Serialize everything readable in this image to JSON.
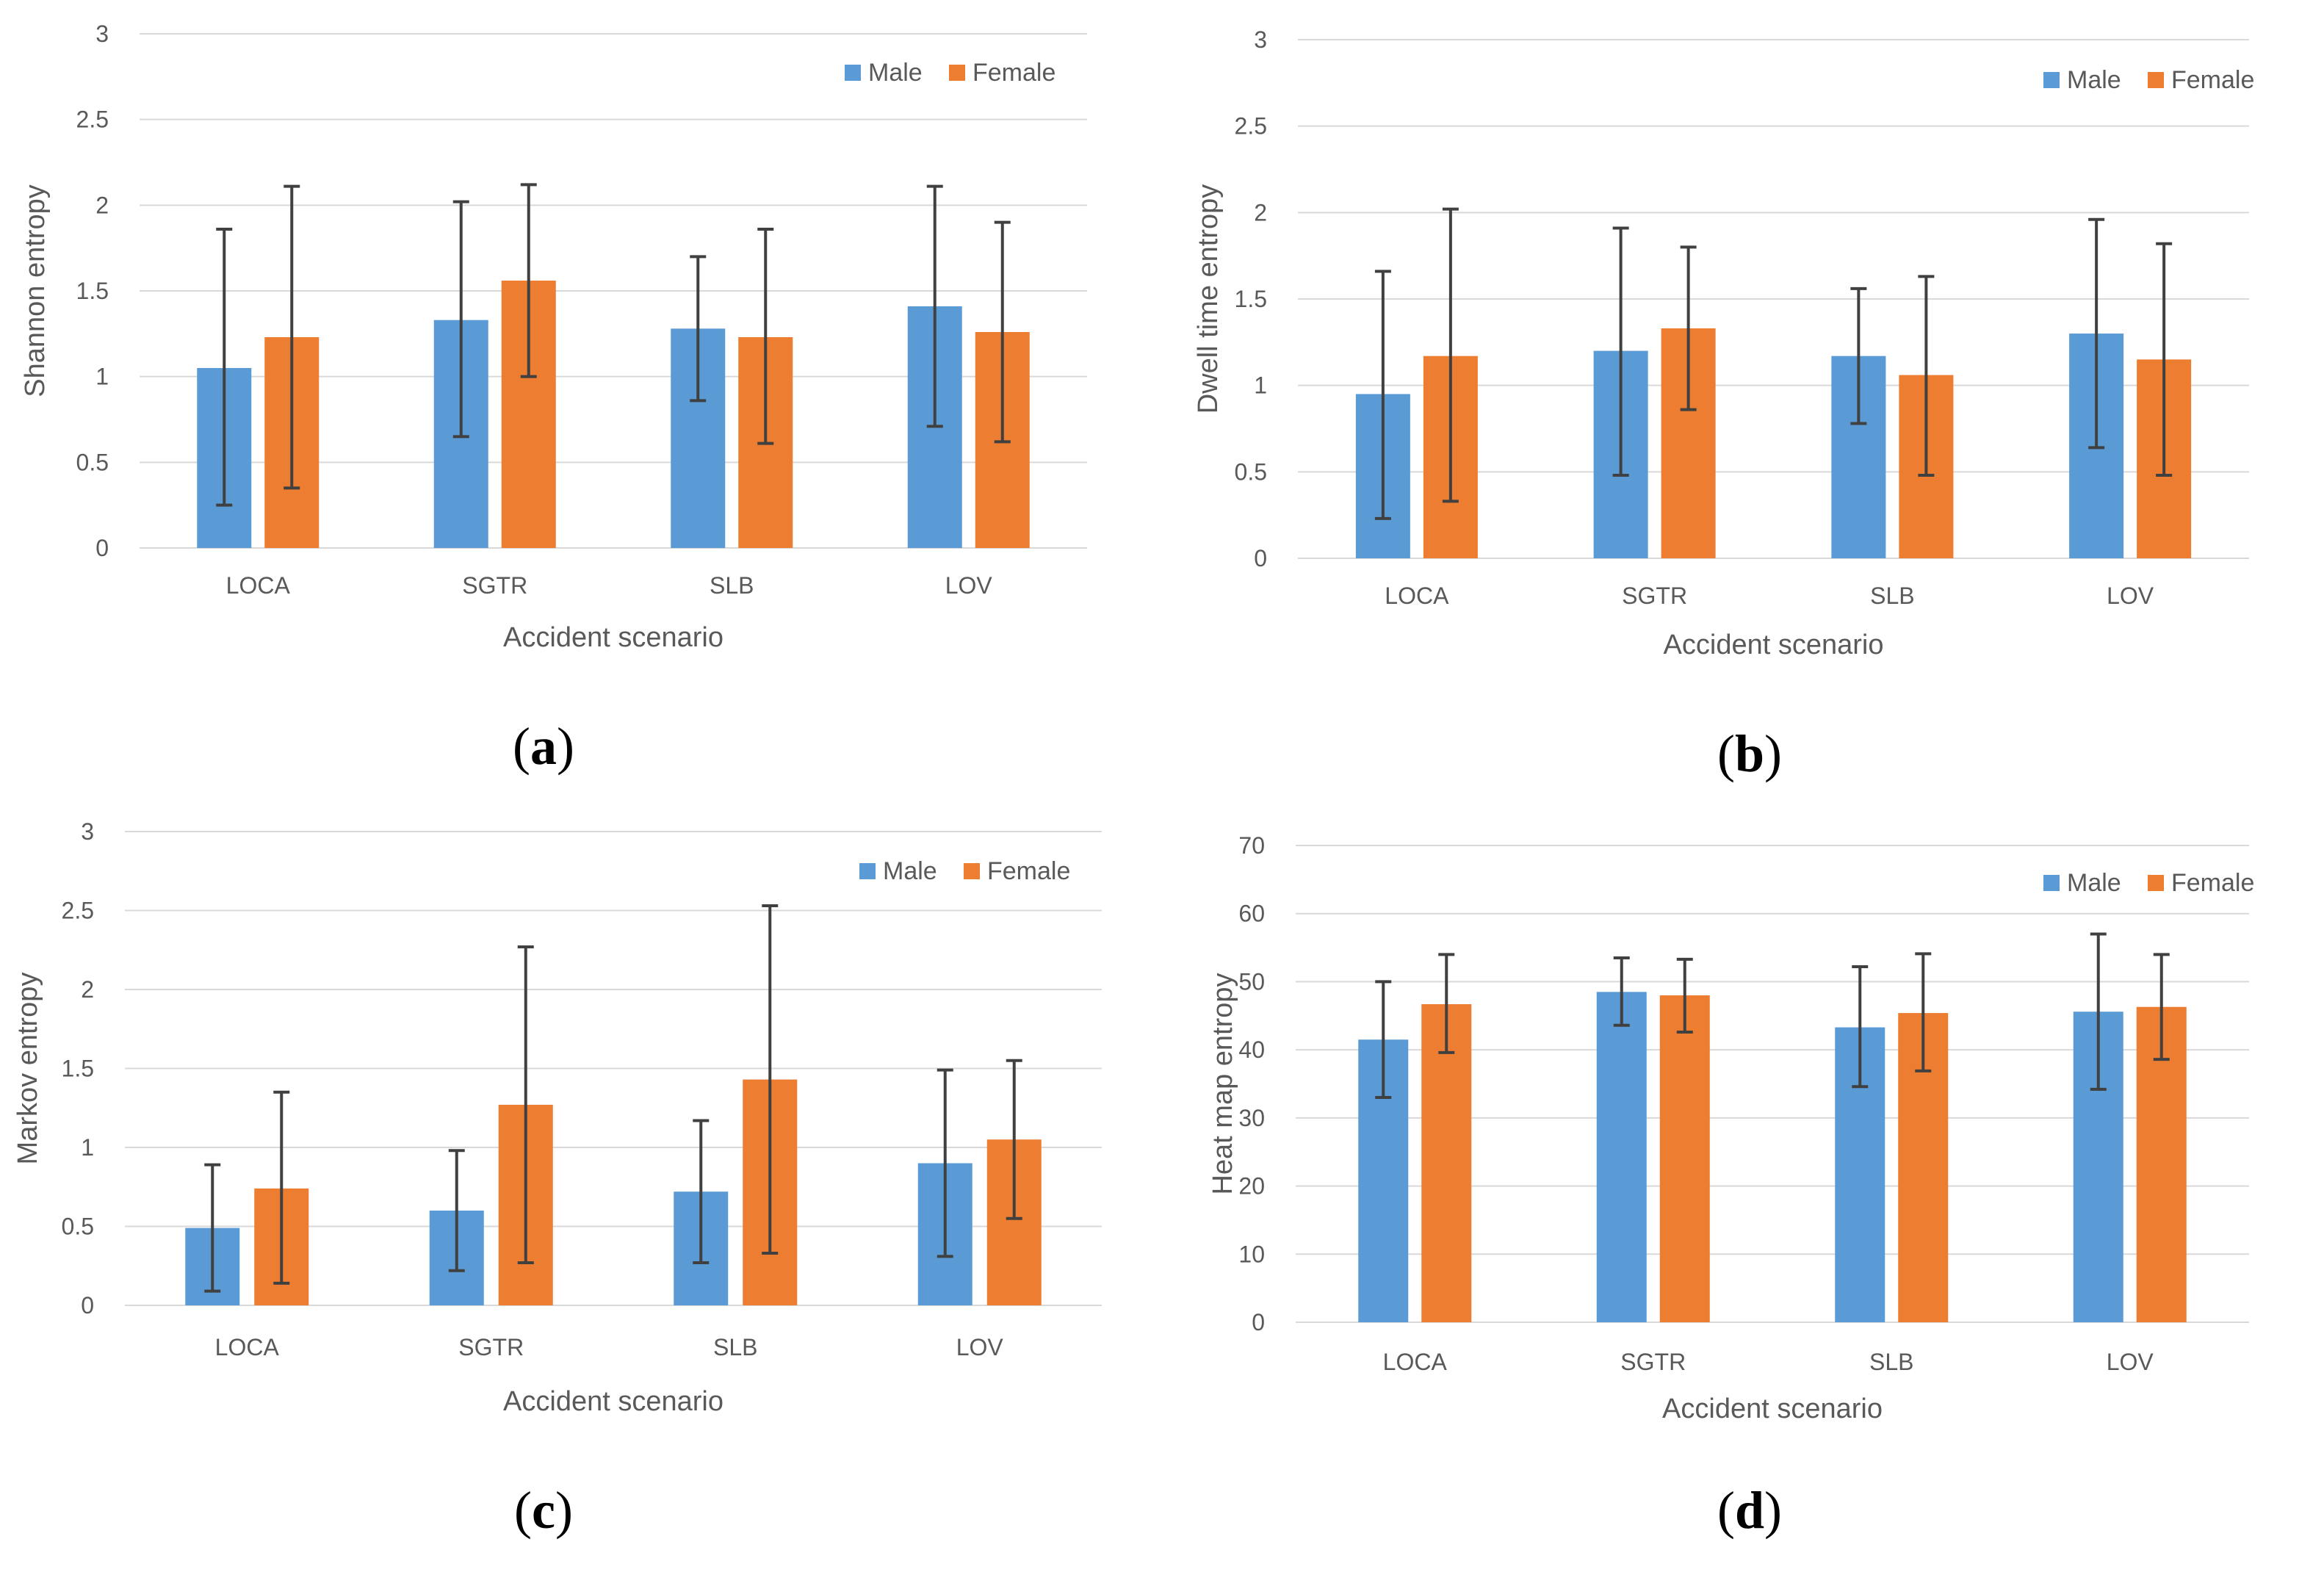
{
  "colors": {
    "male": "#5B9BD5",
    "female": "#ED7D31",
    "grid": "#D9D9D9",
    "error_bar": "#404040",
    "text": "#595959"
  },
  "chart_data": [
    {
      "type": "bar",
      "panel_label": "a",
      "title": "",
      "xlabel": "Accident scenario",
      "ylabel": "Shannon entropy",
      "categories": [
        "LOCA",
        "SGTR",
        "SLB",
        "LOV"
      ],
      "ylim": [
        0,
        3
      ],
      "yticks": [
        "0",
        "0.5",
        "1",
        "1.5",
        "2",
        "2.5",
        "3"
      ],
      "legend_position": "top-right",
      "series": [
        {
          "name": "Male",
          "values": [
            1.05,
            1.33,
            1.28,
            1.41
          ],
          "error_upper": [
            1.86,
            2.02,
            1.7,
            2.11
          ],
          "error_lower": [
            0.25,
            0.65,
            0.86,
            0.71
          ]
        },
        {
          "name": "Female",
          "values": [
            1.23,
            1.56,
            1.23,
            1.26
          ],
          "error_upper": [
            2.11,
            2.12,
            1.86,
            1.9
          ],
          "error_lower": [
            0.35,
            1.0,
            0.61,
            0.62
          ]
        }
      ]
    },
    {
      "type": "bar",
      "panel_label": "b",
      "title": "",
      "xlabel": "Accident scenario",
      "ylabel": "Dwell time entropy",
      "categories": [
        "LOCA",
        "SGTR",
        "SLB",
        "LOV"
      ],
      "ylim": [
        0,
        3
      ],
      "yticks": [
        "0",
        "0.5",
        "1",
        "1.5",
        "2",
        "2.5",
        "3"
      ],
      "legend_position": "top-right",
      "series": [
        {
          "name": "Male",
          "values": [
            0.95,
            1.2,
            1.17,
            1.3
          ],
          "error_upper": [
            1.66,
            1.91,
            1.56,
            1.96
          ],
          "error_lower": [
            0.23,
            0.48,
            0.78,
            0.64
          ]
        },
        {
          "name": "Female",
          "values": [
            1.17,
            1.33,
            1.06,
            1.15
          ],
          "error_upper": [
            2.02,
            1.8,
            1.63,
            1.82
          ],
          "error_lower": [
            0.33,
            0.86,
            0.48,
            0.48
          ]
        }
      ]
    },
    {
      "type": "bar",
      "panel_label": "c",
      "title": "",
      "xlabel": "Accident scenario",
      "ylabel": "Markov entropy",
      "categories": [
        "LOCA",
        "SGTR",
        "SLB",
        "LOV"
      ],
      "ylim": [
        0,
        3
      ],
      "yticks": [
        "0",
        "0.5",
        "1",
        "1.5",
        "2",
        "2.5",
        "3"
      ],
      "legend_position": "top-right",
      "series": [
        {
          "name": "Male",
          "values": [
            0.49,
            0.6,
            0.72,
            0.9
          ],
          "error_upper": [
            0.89,
            0.98,
            1.17,
            1.49
          ],
          "error_lower": [
            0.09,
            0.22,
            0.27,
            0.31
          ]
        },
        {
          "name": "Female",
          "values": [
            0.74,
            1.27,
            1.43,
            1.05
          ],
          "error_upper": [
            1.35,
            2.27,
            2.53,
            1.55
          ],
          "error_lower": [
            0.14,
            0.27,
            0.33,
            0.55
          ]
        }
      ]
    },
    {
      "type": "bar",
      "panel_label": "d",
      "title": "",
      "xlabel": "Accident scenario",
      "ylabel": "Heat map entropy",
      "categories": [
        "LOCA",
        "SGTR",
        "SLB",
        "LOV"
      ],
      "ylim": [
        0,
        70
      ],
      "yticks": [
        "0",
        "10",
        "20",
        "30",
        "40",
        "50",
        "60",
        "70"
      ],
      "legend_position": "top-right",
      "series": [
        {
          "name": "Male",
          "values": [
            41.5,
            48.5,
            43.3,
            45.6
          ],
          "error_upper": [
            50.0,
            53.5,
            52.2,
            57.0
          ],
          "error_lower": [
            33.0,
            43.6,
            34.6,
            34.2
          ]
        },
        {
          "name": "Female",
          "values": [
            46.7,
            48.0,
            45.4,
            46.3
          ],
          "error_upper": [
            54.0,
            53.3,
            54.1,
            54.0
          ],
          "error_lower": [
            39.6,
            42.6,
            36.9,
            38.6
          ]
        }
      ]
    }
  ]
}
